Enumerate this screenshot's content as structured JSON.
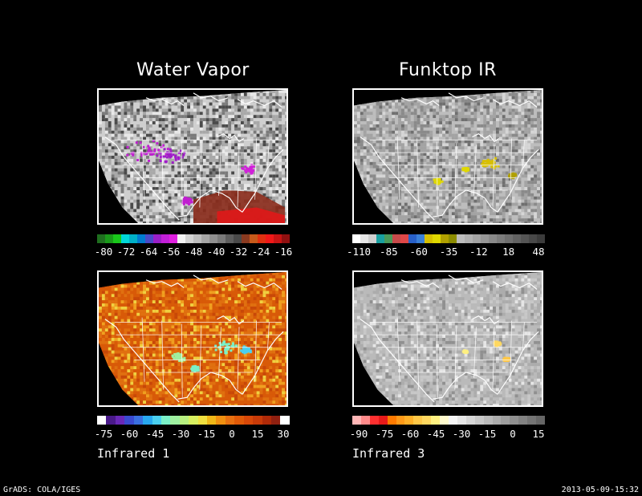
{
  "panels": [
    {
      "id": "wv",
      "title": "Water Vapor",
      "caption": "",
      "scheme": "wv",
      "colorbar": [
        "#1f6f1f",
        "#1a9a1a",
        "#19c81a",
        "#00d8d8",
        "#00b0c8",
        "#007bd0",
        "#4a4ac8",
        "#9b1fc8",
        "#c21fd8",
        "#e020e0",
        "#f2f2f2",
        "#d2d2d2",
        "#bdbdbd",
        "#a5a5a5",
        "#8f8f8f",
        "#7a7a7a",
        "#5e5e5e",
        "#4a4a4a",
        "#8a3a20",
        "#c85a1a",
        "#e03010",
        "#f01818",
        "#c81414",
        "#901010"
      ],
      "ticks": [
        "-80",
        "-72",
        "-64",
        "-56",
        "-48",
        "-40",
        "-32",
        "-24",
        "-16"
      ]
    },
    {
      "id": "ft",
      "title": "Funktop IR",
      "caption": "",
      "scheme": "ft",
      "colorbar": [
        "#ffffff",
        "#e6e6e6",
        "#cfcfcf",
        "#19a0a0",
        "#4a9a5a",
        "#c84a4a",
        "#e04848",
        "#2860c8",
        "#3a80d8",
        "#d8c000",
        "#e0d800",
        "#b0a000",
        "#8c8c00",
        "#bdbdbd",
        "#b0b0b0",
        "#a3a3a3",
        "#969696",
        "#898989",
        "#7c7c7c",
        "#6f6f6f",
        "#626262",
        "#555555",
        "#484848",
        "#3b3b3b"
      ],
      "ticks": [
        "-110",
        "-85",
        "-60",
        "-35",
        "-12",
        "18",
        "48"
      ]
    },
    {
      "id": "ir1",
      "title": "",
      "caption": "Infrared 1",
      "scheme": "ir1",
      "colorbar": [
        "#ffffff",
        "#4a1a8a",
        "#6a28b8",
        "#3a4ad0",
        "#3a70e0",
        "#28a8f0",
        "#4ad0f0",
        "#7af0c8",
        "#9ef0a0",
        "#b8f080",
        "#d8f060",
        "#f0e040",
        "#f0b818",
        "#f09010",
        "#e87010",
        "#e05a08",
        "#d84808",
        "#c83a08",
        "#b02a08",
        "#902010",
        "#ffffff"
      ],
      "ticks": [
        "-75",
        "-60",
        "-45",
        "-30",
        "-15",
        "0",
        "15",
        "30"
      ]
    },
    {
      "id": "ir3",
      "title": "",
      "caption": "Infrared 3",
      "scheme": "ir3",
      "colorbar": [
        "#ffb6b6",
        "#ff8a8a",
        "#ff3030",
        "#e81a1a",
        "#ff7a00",
        "#ff9a18",
        "#ffb028",
        "#ffc848",
        "#ffd860",
        "#fff080",
        "#fffacd",
        "#f5f5f5",
        "#e6e6e6",
        "#d6d6d6",
        "#c8c8c8",
        "#bababa",
        "#acacac",
        "#9e9e9e",
        "#909090",
        "#828282",
        "#747474",
        "#666666"
      ],
      "ticks": [
        "-90",
        "-75",
        "-60",
        "-45",
        "-30",
        "-15",
        "0",
        "15"
      ]
    }
  ],
  "footer": {
    "left": "GrADS: COLA/IGES",
    "right": "2013-05-09-15:32"
  }
}
